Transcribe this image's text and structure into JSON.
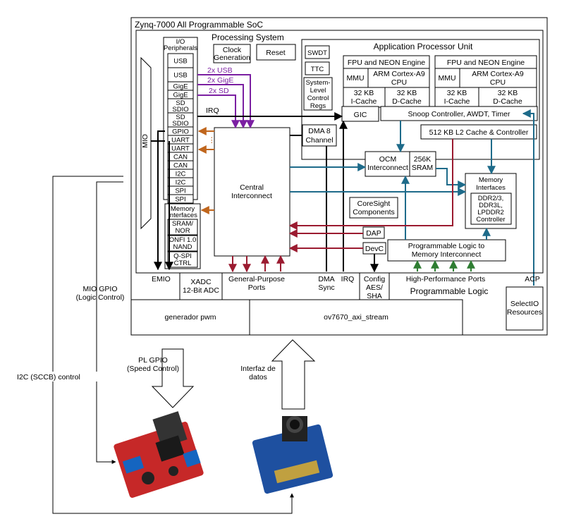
{
  "colors": {
    "purple": "#7b1fa2",
    "orange": "#c0661d",
    "teal": "#1e6b8a",
    "maroon": "#9b1b30",
    "green": "#2e7d32",
    "black": "#000000"
  },
  "soc": {
    "title": "Zynq-7000 All Programmable SoC",
    "ps_title": "Processing System",
    "io_title": [
      "I/O",
      "Peripherals"
    ],
    "io_items": [
      [
        "USB"
      ],
      [
        "USB"
      ],
      [
        "GigE"
      ],
      [
        "GigE"
      ],
      [
        "SD",
        "SDIO"
      ],
      [
        "SD",
        "SDIO"
      ],
      [
        "GPIO"
      ],
      [
        "UART"
      ],
      [
        "UART"
      ],
      [
        "CAN"
      ],
      [
        "CAN"
      ],
      [
        "I2C"
      ],
      [
        "I2C"
      ],
      [
        "SPI"
      ],
      [
        "SPI"
      ]
    ],
    "mio": "MIO",
    "clock_gen": [
      "Clock",
      "Generation"
    ],
    "reset": "Reset",
    "apu_title": "Application Processor Unit",
    "swdt": "SWDT",
    "ttc": "TTC",
    "slcr": [
      "System-",
      "Level",
      "Control",
      "Regs"
    ],
    "fpu": "FPU and NEON Engine",
    "mmu": "MMU",
    "cpu": [
      "ARM Cortex-A9",
      "CPU"
    ],
    "icache": [
      "32 KB",
      "I-Cache"
    ],
    "dcache": [
      "32 KB",
      "D-Cache"
    ],
    "gic": "GIC",
    "snoop": "Snoop Controller, AWDT, Timer",
    "l2": "512 KB L2 Cache & Controller",
    "ocm": [
      "OCM",
      "Interconnect"
    ],
    "sram": [
      "256K",
      "SRAM"
    ],
    "dma": [
      "DMA 8",
      "Channel"
    ],
    "central": [
      "Central",
      "Interconnect"
    ],
    "mem_if_left": [
      "Memory",
      "Interfaces"
    ],
    "mem_if_left_items": [
      [
        "SRAM/",
        "NOR"
      ],
      [
        "ONFI 1.0",
        "NAND"
      ],
      [
        "Q-SPI",
        "CTRL"
      ]
    ],
    "mem_if_right": [
      "Memory",
      "Interfaces"
    ],
    "ddr": [
      "DDR2/3,",
      "DDR3L,",
      "LPDDR2",
      "Controller"
    ],
    "coresight": [
      "CoreSight",
      "Components"
    ],
    "dap": "DAP",
    "devc": "DevC",
    "pl_mem": [
      "Programmable Logic to",
      "Memory Interconnect"
    ],
    "usb_label": "2x USB",
    "gige_label": "2x GigE",
    "sd_label": "2x SD",
    "irq_label": "IRQ",
    "emio": "EMIO",
    "xadc": [
      "XADC",
      "12-Bit ADC"
    ],
    "gp_ports": [
      "General-Purpose",
      "Ports"
    ],
    "dma_sync": [
      "DMA",
      "Sync"
    ],
    "irq_bottom": "IRQ",
    "config": [
      "Config",
      "AES/",
      "SHA"
    ],
    "hp_ports": "High-Performance Ports",
    "pl_title": "Programmable Logic",
    "acp": "ACP",
    "selectio": [
      "SelectIO",
      "Resources"
    ],
    "pwm": "generador pwm",
    "ov": "ov7670_axi_stream"
  },
  "external": {
    "mio_gpio": [
      "MIO GPIO",
      "(Logic Control)"
    ],
    "i2c": "I2C (SCCB) control",
    "pl_gpio": [
      "PL GPIO",
      "(Speed Control)"
    ],
    "interfaz": [
      "Interfaz de",
      "datos"
    ]
  }
}
